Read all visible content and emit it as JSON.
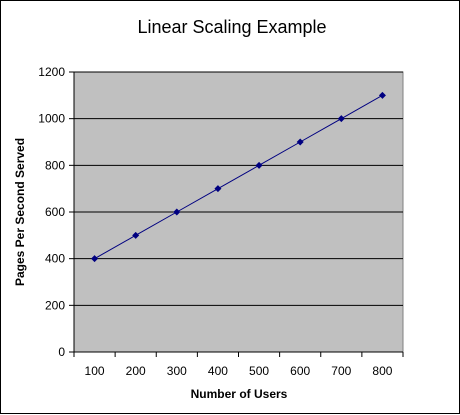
{
  "chart_data": {
    "type": "line",
    "title": "Linear Scaling Example",
    "xlabel": "Number of Users",
    "ylabel": "Pages Per Second Served",
    "categories": [
      "100",
      "200",
      "300",
      "400",
      "500",
      "600",
      "700",
      "800"
    ],
    "series": [
      {
        "values": [
          400,
          500,
          600,
          700,
          800,
          900,
          1000,
          1100
        ]
      }
    ],
    "ylim": [
      0,
      1200
    ],
    "yticks": [
      "0",
      "200",
      "400",
      "600",
      "800",
      "1000",
      "1200"
    ],
    "grid": "horizontal",
    "legend": "none",
    "colors": {
      "plot_background": "#c0c0c0",
      "series_line": "#000080",
      "marker": "#000080",
      "gridline": "#000000"
    }
  }
}
